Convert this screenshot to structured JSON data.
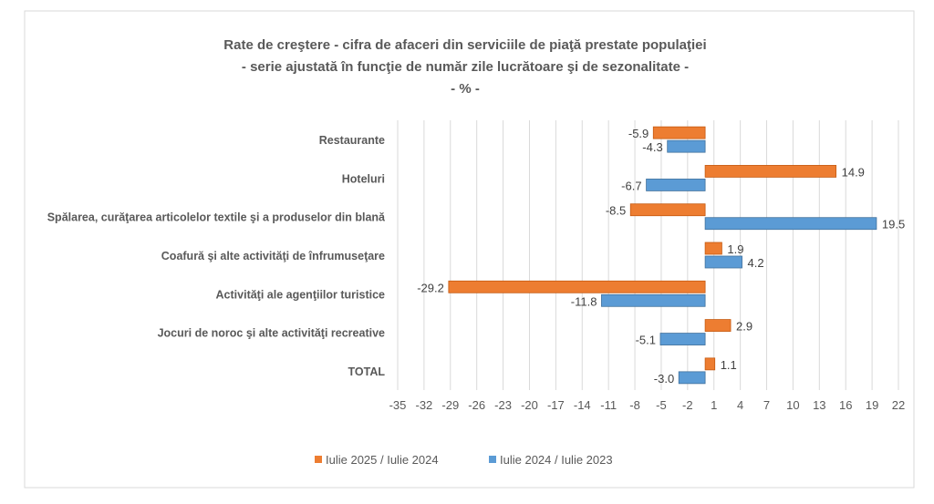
{
  "chart_data": {
    "type": "bar",
    "orientation": "horizontal",
    "title_lines": [
      "Rate de creştere - cifra de afaceri din serviciile de piaţă prestate populaţiei",
      "- serie ajustată în funcţie de număr zile lucrătoare şi de sezonalitate -",
      "- % -"
    ],
    "categories": [
      "Restaurante",
      "Hoteluri",
      "Spălarea, curăţarea articolelor textile şi a produselor din blană",
      "Coafură şi alte activităţi de înfrumuseţare",
      "Activităţi ale agenţiilor turistice",
      "Jocuri de noroc şi alte activităţi recreative",
      "TOTAL"
    ],
    "series": [
      {
        "name": "Iulie 2025 / Iulie 2024",
        "color": "#ED7D31",
        "values": [
          -5.9,
          14.9,
          -8.5,
          1.9,
          -29.2,
          2.9,
          1.1
        ],
        "labels": [
          "-5.9",
          "14.9",
          "-8.5",
          "1.9",
          "-29.2",
          "2.9",
          "1.1"
        ]
      },
      {
        "name": "Iulie 2024 / Iulie 2023",
        "color": "#5B9BD5",
        "values": [
          -4.3,
          -6.7,
          19.5,
          4.2,
          -11.8,
          -5.1,
          -3.0
        ],
        "labels": [
          "-4.3",
          "-6.7",
          "19.5",
          "4.2",
          "-11.8",
          "-5.1",
          "-3.0"
        ]
      }
    ],
    "xlim": [
      -35,
      22
    ],
    "xticks": [
      "-35",
      "-32",
      "-29",
      "-26",
      "-23",
      "-20",
      "-17",
      "-14",
      "-11",
      "-8",
      "-5",
      "-2",
      "1",
      "4",
      "7",
      "10",
      "13",
      "16",
      "19",
      "22"
    ],
    "grid": true,
    "legend": "bottom"
  }
}
